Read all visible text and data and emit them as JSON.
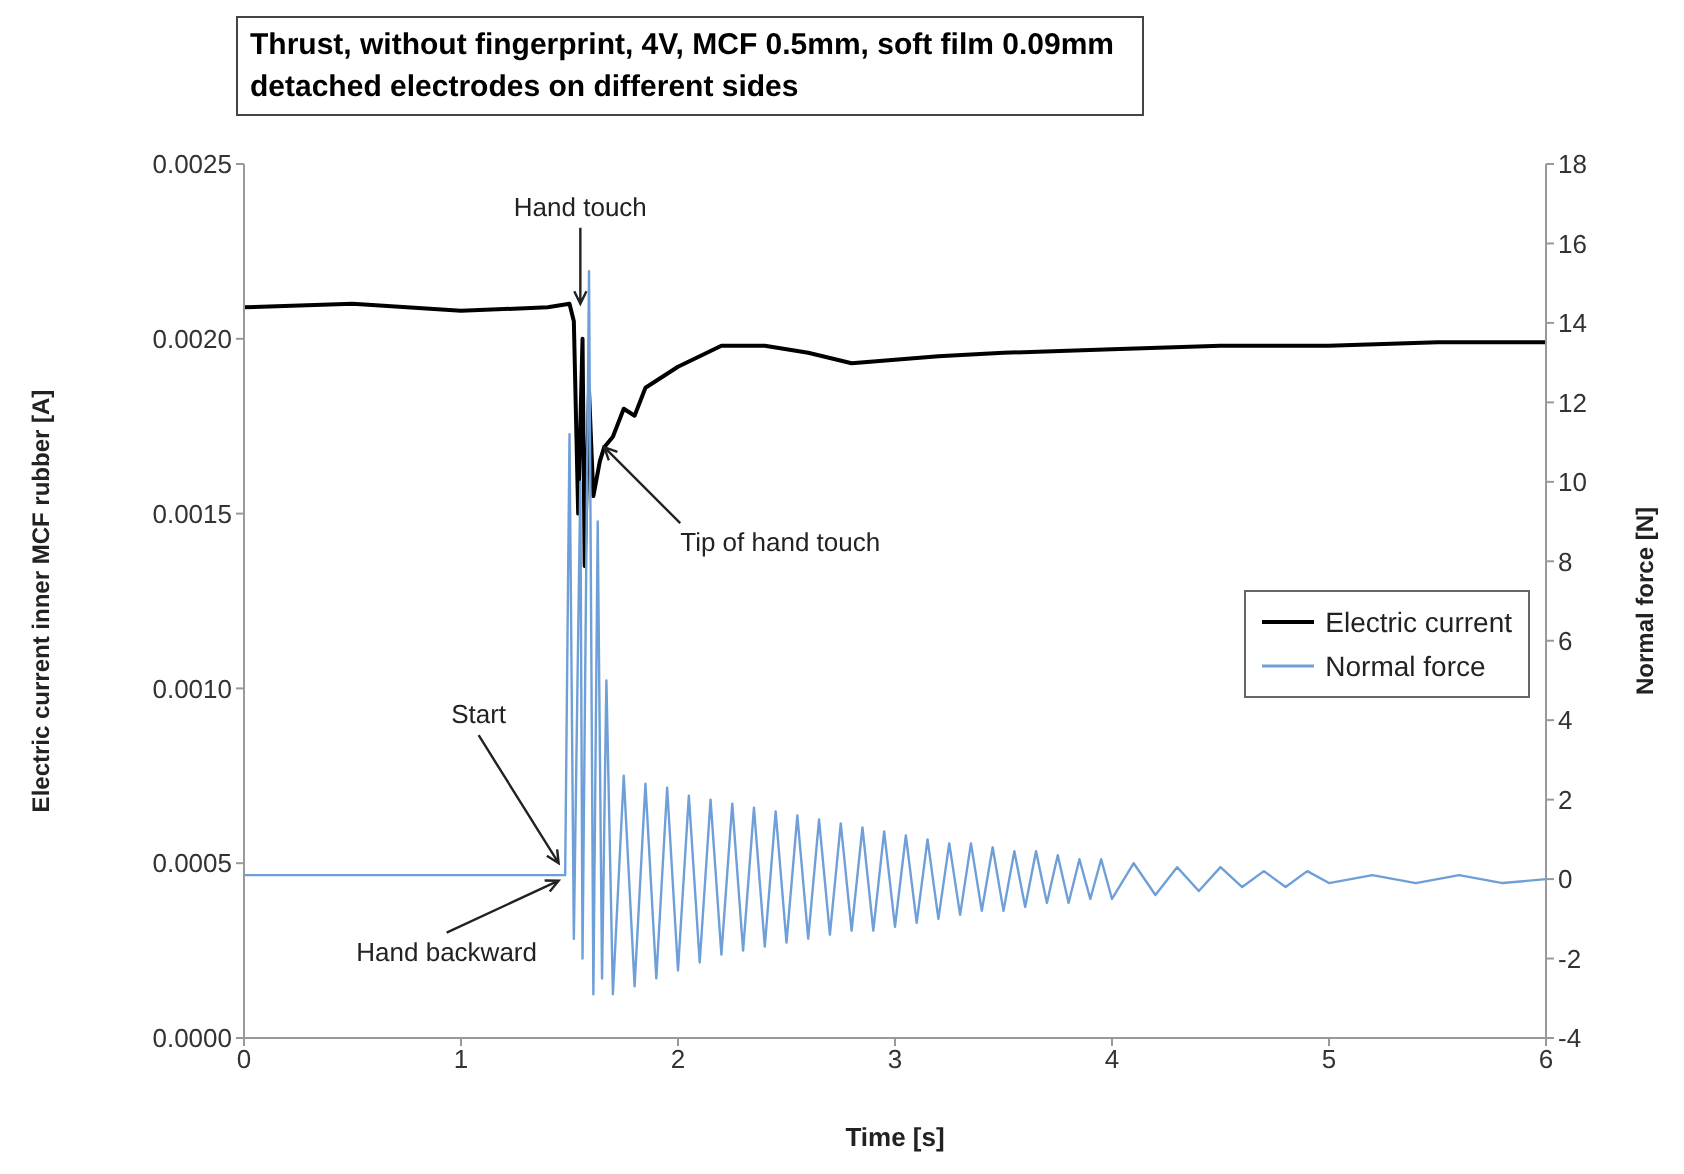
{
  "chart_data": {
    "type": "line",
    "title": "Thrust, without fingerprint, 4V, MCF 0.5mm, soft film 0.09mm detached electrodes on different sides",
    "xlabel": "Time [s]",
    "ylabel": "Electric current inner MCF rubber [A]",
    "y2label": "Normal force [N]",
    "xlim": [
      0,
      6
    ],
    "xticks": [
      0,
      1,
      2,
      3,
      4,
      5,
      6
    ],
    "ylim": [
      0,
      0.0025
    ],
    "yticks": [
      {
        "value": 0,
        "label": "0.0000"
      },
      {
        "value": 0.0005,
        "label": "0.0005"
      },
      {
        "value": 0.001,
        "label": "0.0010"
      },
      {
        "value": 0.0015,
        "label": "0.0015"
      },
      {
        "value": 0.002,
        "label": "0.0020"
      },
      {
        "value": 0.0025,
        "label": "0.0025"
      }
    ],
    "y2lim": [
      -4,
      18
    ],
    "y2ticks": [
      -4,
      -2,
      0,
      2,
      4,
      6,
      8,
      10,
      12,
      14,
      16,
      18
    ],
    "grid": false,
    "legend": "right",
    "series": [
      {
        "name": "Electric current",
        "color": "#000000",
        "x": [
          0,
          0.5,
          1.0,
          1.4,
          1.5,
          1.52,
          1.54,
          1.56,
          1.57,
          1.59,
          1.61,
          1.64,
          1.66,
          1.7,
          1.75,
          1.8,
          1.85,
          1.9,
          2.0,
          2.1,
          2.2,
          2.4,
          2.6,
          2.8,
          3.0,
          3.2,
          3.5,
          4.0,
          4.5,
          5.0,
          5.5,
          6.0
        ],
        "values": [
          0.00209,
          0.0021,
          0.00208,
          0.00209,
          0.0021,
          0.00205,
          0.0015,
          0.002,
          0.00135,
          0.00185,
          0.00155,
          0.00165,
          0.00169,
          0.00172,
          0.0018,
          0.00178,
          0.00186,
          0.00188,
          0.00192,
          0.00195,
          0.00198,
          0.00198,
          0.00196,
          0.00193,
          0.00194,
          0.00195,
          0.00196,
          0.00197,
          0.00198,
          0.00198,
          0.00199,
          0.00199
        ]
      },
      {
        "name": "Normal force",
        "color": "#6f9fd8",
        "axis": "y2",
        "x": [
          0,
          1.0,
          1.48,
          1.5,
          1.52,
          1.55,
          1.56,
          1.59,
          1.61,
          1.63,
          1.65,
          1.67,
          1.7,
          1.75,
          1.8,
          1.85,
          1.9,
          1.95,
          2.0,
          2.05,
          2.1,
          2.15,
          2.2,
          2.25,
          2.3,
          2.35,
          2.4,
          2.45,
          2.5,
          2.55,
          2.6,
          2.65,
          2.7,
          2.75,
          2.8,
          2.85,
          2.9,
          2.95,
          3.0,
          3.05,
          3.1,
          3.15,
          3.2,
          3.25,
          3.3,
          3.35,
          3.4,
          3.45,
          3.5,
          3.55,
          3.6,
          3.65,
          3.7,
          3.75,
          3.8,
          3.85,
          3.9,
          3.95,
          4.0,
          4.1,
          4.2,
          4.3,
          4.4,
          4.5,
          4.6,
          4.7,
          4.8,
          4.9,
          5.0,
          5.2,
          5.4,
          5.6,
          5.8,
          6.0
        ],
        "values": [
          0.1,
          0.1,
          0.1,
          11.2,
          -1.5,
          10,
          -2,
          15.3,
          -2.9,
          9,
          -2.5,
          5,
          -2.9,
          2.6,
          -2.7,
          2.4,
          -2.5,
          2.3,
          -2.3,
          2.1,
          -2.1,
          2.0,
          -1.9,
          1.9,
          -1.8,
          1.8,
          -1.7,
          1.7,
          -1.6,
          1.6,
          -1.5,
          1.5,
          -1.4,
          1.4,
          -1.3,
          1.3,
          -1.3,
          1.2,
          -1.2,
          1.1,
          -1.1,
          1.0,
          -1.0,
          0.9,
          -0.9,
          0.9,
          -0.8,
          0.8,
          -0.8,
          0.7,
          -0.7,
          0.7,
          -0.6,
          0.6,
          -0.6,
          0.5,
          -0.5,
          0.5,
          -0.5,
          0.4,
          -0.4,
          0.3,
          -0.3,
          0.3,
          -0.2,
          0.2,
          -0.2,
          0.2,
          -0.1,
          0.1,
          -0.1,
          0.1,
          -0.1,
          0.0
        ]
      }
    ],
    "annotations": [
      {
        "text": "Hand touch",
        "x": 1.55,
        "y": 0.0021
      },
      {
        "text": "Tip of hand touch",
        "x": 1.66,
        "y": 0.00169
      },
      {
        "text": "Start",
        "x": 1.45,
        "y": 0.0005
      },
      {
        "text": "Hand backward",
        "x": 1.45,
        "y": 0.00045
      }
    ]
  }
}
